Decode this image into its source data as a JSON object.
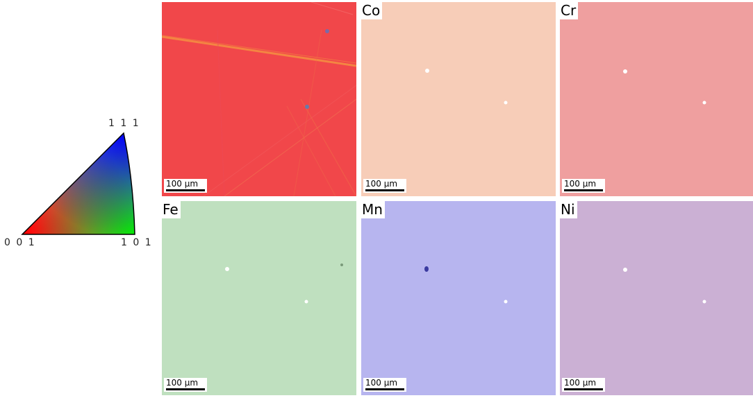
{
  "ipf_key": {
    "corner_111": "1 1 1",
    "corner_001": "0 0 1",
    "corner_101": "1 0 1"
  },
  "panels": {
    "ipf": {
      "label": "",
      "scale": "100 µm",
      "color": "#f04050"
    },
    "co": {
      "label": "Co",
      "scale": "100 µm",
      "color": "#f7cdb8"
    },
    "cr": {
      "label": "Cr",
      "scale": "100 µm",
      "color": "#ef9f9f"
    },
    "fe": {
      "label": "Fe",
      "scale": "100 µm",
      "color": "#bfe0bf"
    },
    "mn": {
      "label": "Mn",
      "scale": "100 µm",
      "color": "#b7b5ef"
    },
    "ni": {
      "label": "Ni",
      "scale": "100 µm",
      "color": "#cbb0d4"
    }
  }
}
